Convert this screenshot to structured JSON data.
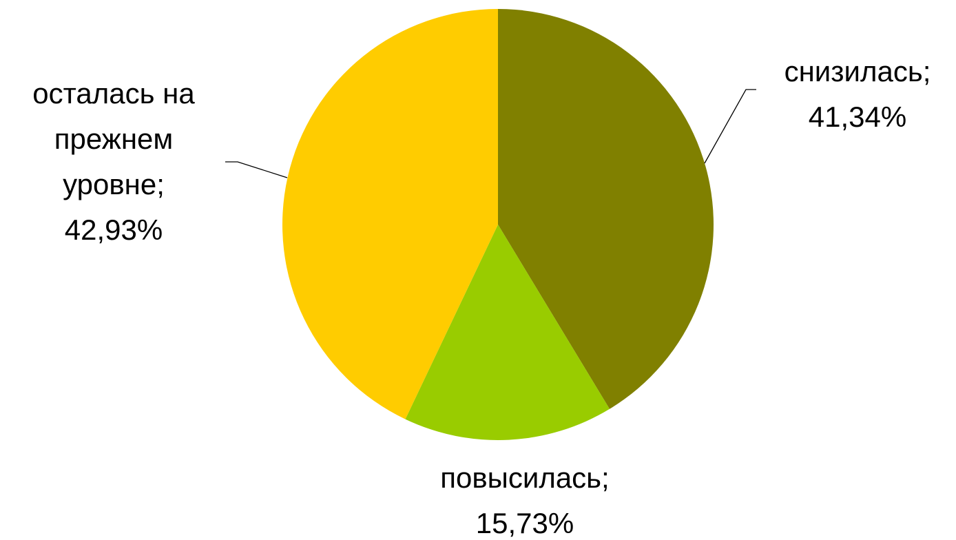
{
  "chart_data": {
    "type": "pie",
    "title": "",
    "slices": [
      {
        "label": "снизилась",
        "value": 41.34,
        "value_label": "41,34%",
        "color": "#808000"
      },
      {
        "label": "повысилась",
        "value": 15.73,
        "value_label": "15,73%",
        "color": "#99CC00"
      },
      {
        "label": "осталась на прежнем уровне",
        "value": 42.93,
        "value_label": "42,93%",
        "color": "#FFCC00"
      }
    ],
    "label_text": {
      "slice0": [
        "снизилась;",
        "41,34%"
      ],
      "slice1": [
        "повысилась;",
        "15,73%"
      ],
      "slice2": [
        "осталась на",
        "прежнем",
        "уровне;",
        "42,93%"
      ]
    },
    "start_angle": "12 o'clock",
    "direction": "clockwise",
    "legend": "none",
    "data_labels": "outside with leader lines"
  }
}
